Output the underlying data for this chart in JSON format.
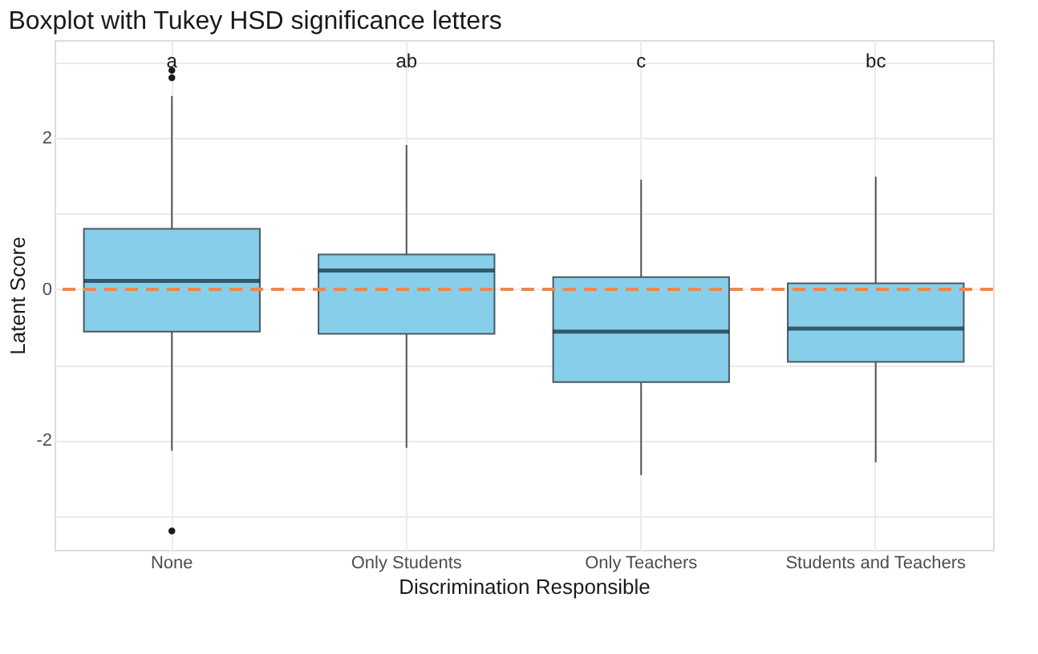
{
  "chart_data": {
    "type": "box",
    "title": "Boxplot with Tukey HSD significance letters",
    "xlabel": "Discrimination Responsible",
    "ylabel": "Latent Score",
    "categories": [
      "None",
      "Only Students",
      "Only Teachers",
      "Students and Teachers"
    ],
    "boxes": [
      {
        "low": -2.14,
        "q1": -0.56,
        "median": 0.11,
        "q3": 0.8,
        "high": 2.56,
        "outliers": [
          2.8,
          2.9,
          -3.2
        ]
      },
      {
        "low": -2.1,
        "q1": -0.59,
        "median": 0.25,
        "q3": 0.46,
        "high": 1.91
      },
      {
        "low": -2.46,
        "q1": -1.23,
        "median": -0.56,
        "q3": 0.16,
        "high": 1.45
      },
      {
        "low": -2.29,
        "q1": -0.96,
        "median": -0.52,
        "q3": 0.08,
        "high": 1.49
      }
    ],
    "color": "#87ceeb",
    "ylim": [
      -3.45,
      3.3
    ],
    "yticks": [
      {
        "value": -3,
        "label": null
      },
      -2,
      {
        "value": -1,
        "label": null
      },
      0,
      {
        "value": 1,
        "label": null
      },
      2,
      {
        "value": 3,
        "label": null
      }
    ],
    "grid": true,
    "ref_lines": [
      {
        "axis": "y",
        "value": 0,
        "color": "#e8894f",
        "line_style": "dashed"
      }
    ],
    "annotations": [
      "a",
      "ab",
      "c",
      "bc"
    ]
  }
}
